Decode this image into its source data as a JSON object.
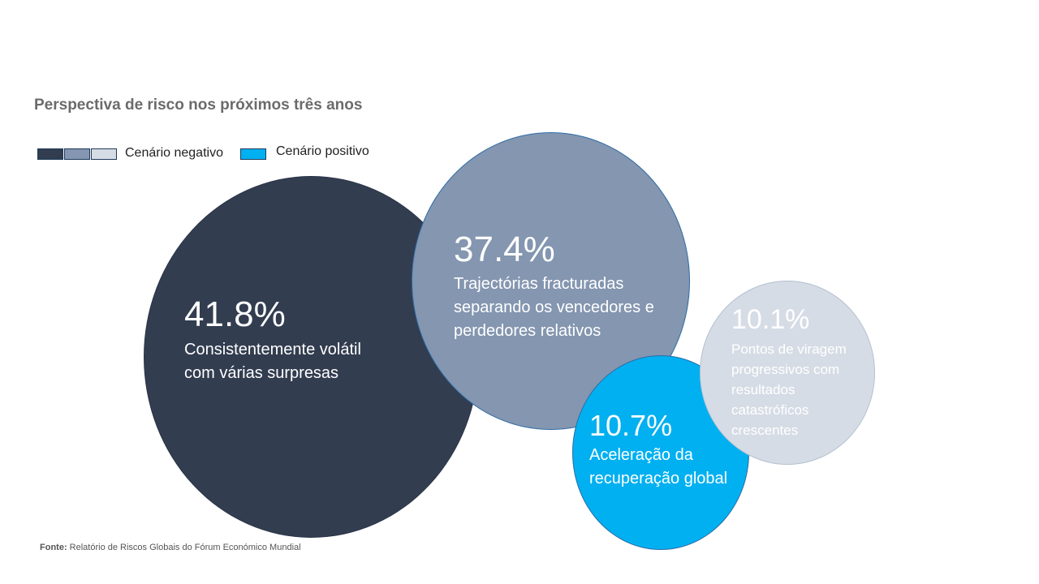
{
  "title": "Perspectiva de risco nos próximos três anos",
  "legend": {
    "negative_label": "Cenário negativo",
    "positive_label": "Cenário positivo",
    "negative_colors": [
      "#323d50",
      "#8496b0",
      "#d6dce5"
    ],
    "positive_color": "#00b0f0"
  },
  "chart_data": {
    "type": "bubble",
    "title": "Perspectiva de risco nos próximos três anos",
    "series": [
      {
        "value": 41.8,
        "label": "41.8%",
        "description": "Consistentemente volátil com várias surpresas",
        "scenario": "Cenário negativo",
        "color": "#323d50"
      },
      {
        "value": 37.4,
        "label": "37.4%",
        "description": "Trajectórias fracturadas separando os vencedores e perdedores relativos",
        "scenario": "Cenário negativo",
        "color": "#8496b0"
      },
      {
        "value": 10.7,
        "label": "10.7%",
        "description": "Aceleração da recuperação global",
        "scenario": "Cenário positivo",
        "color": "#00b0f0"
      },
      {
        "value": 10.1,
        "label": "10.1%",
        "description": "Pontos de viragem progressivos com resultados catastróficos crescentes",
        "scenario": "Cenário negativo",
        "color": "#d6dce5"
      }
    ]
  },
  "source": {
    "prefix": "Fonte:",
    "text": " Relatório de Riscos Globais do Fórum Económico Mundial"
  }
}
